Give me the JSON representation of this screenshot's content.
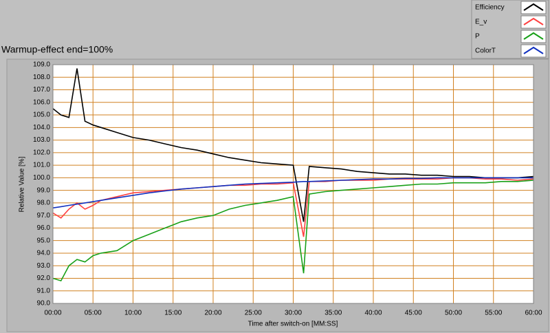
{
  "chart_data": {
    "type": "line",
    "title": "Warmup-effect end=100%",
    "x_label": "Time after switch-on [MM:SS]",
    "y_label": "Relative Value [%]",
    "x": [
      0,
      1,
      2,
      3,
      4,
      5,
      6,
      8,
      10,
      12,
      14,
      16,
      18,
      20,
      22,
      24,
      26,
      28,
      30,
      31.3,
      32,
      34,
      36,
      38,
      40,
      42,
      44,
      46,
      48,
      50,
      52,
      54,
      56,
      58,
      60
    ],
    "series": [
      {
        "name": "Efficiency",
        "color": "#000000",
        "values": [
          105.5,
          105,
          104.8,
          108.7,
          104.5,
          104.2,
          104,
          103.6,
          103.2,
          103,
          102.7,
          102.4,
          102.2,
          101.9,
          101.6,
          101.4,
          101.2,
          101.1,
          101,
          96.5,
          100.9,
          100.8,
          100.7,
          100.5,
          100.4,
          100.3,
          100.3,
          100.2,
          100.2,
          100.1,
          100.1,
          100,
          100,
          100,
          100.1
        ]
      },
      {
        "name": "E_v",
        "color": "#ff4040",
        "values": [
          97.2,
          96.8,
          97.5,
          98,
          97.5,
          97.8,
          98.2,
          98.5,
          98.8,
          98.9,
          99,
          99.1,
          99.2,
          99.3,
          99.4,
          99.4,
          99.5,
          99.5,
          99.6,
          95.3,
          99.7,
          99.7,
          99.8,
          99.8,
          99.8,
          99.9,
          99.9,
          99.9,
          99.9,
          100,
          100,
          99.9,
          99.9,
          99.8,
          99.9
        ]
      },
      {
        "name": "P",
        "color": "#18a018",
        "values": [
          92,
          91.8,
          93,
          93.5,
          93.3,
          93.8,
          94,
          94.2,
          95,
          95.5,
          96,
          96.5,
          96.8,
          97,
          97.5,
          97.8,
          98,
          98.2,
          98.5,
          92.4,
          98.7,
          98.9,
          99,
          99.1,
          99.2,
          99.3,
          99.4,
          99.5,
          99.5,
          99.6,
          99.6,
          99.6,
          99.7,
          99.7,
          99.8
        ]
      },
      {
        "name": "ColorT",
        "color": "#1030c0",
        "values": [
          97.6,
          97.7,
          97.8,
          97.9,
          98,
          98.1,
          98.2,
          98.4,
          98.6,
          98.8,
          98.95,
          99.1,
          99.2,
          99.3,
          99.4,
          99.5,
          99.55,
          99.6,
          99.65,
          99.7,
          99.7,
          99.75,
          99.8,
          99.85,
          99.9,
          99.9,
          99.95,
          99.95,
          100,
          100,
          100,
          100,
          100,
          100,
          100
        ]
      }
    ],
    "xlim": [
      0,
      60
    ],
    "xticks": [
      {
        "value": 0,
        "label": "00:00"
      },
      {
        "value": 5,
        "label": "05:00"
      },
      {
        "value": 10,
        "label": "10:00"
      },
      {
        "value": 15,
        "label": "15:00"
      },
      {
        "value": 20,
        "label": "20:00"
      },
      {
        "value": 25,
        "label": "25:00"
      },
      {
        "value": 30,
        "label": "30:00"
      },
      {
        "value": 35,
        "label": "35:00"
      },
      {
        "value": 40,
        "label": "40:00"
      },
      {
        "value": 45,
        "label": "45:00"
      },
      {
        "value": 50,
        "label": "50:00"
      },
      {
        "value": 55,
        "label": "55:00"
      },
      {
        "value": 60,
        "label": "60:00"
      }
    ],
    "ylim": [
      90,
      109
    ],
    "yticks": [
      {
        "value": 90,
        "label": "90.0"
      },
      {
        "value": 91,
        "label": "91.0"
      },
      {
        "value": 92,
        "label": "92.0"
      },
      {
        "value": 93,
        "label": "93.0"
      },
      {
        "value": 94,
        "label": "94.0"
      },
      {
        "value": 95,
        "label": "95.0"
      },
      {
        "value": 96,
        "label": "96.0"
      },
      {
        "value": 97,
        "label": "97.0"
      },
      {
        "value": 98,
        "label": "98.0"
      },
      {
        "value": 99,
        "label": "99.0"
      },
      {
        "value": 100,
        "label": "100.0"
      },
      {
        "value": 101,
        "label": "101.0"
      },
      {
        "value": 102,
        "label": "102.0"
      },
      {
        "value": 103,
        "label": "103.0"
      },
      {
        "value": 104,
        "label": "104.0"
      },
      {
        "value": 105,
        "label": "105.0"
      },
      {
        "value": 106,
        "label": "106.0"
      },
      {
        "value": 107,
        "label": "107.0"
      },
      {
        "value": 108,
        "label": "108.0"
      },
      {
        "value": 109,
        "label": "109.0"
      }
    ],
    "grid": true,
    "grid_color": "#d08020",
    "legend": "top-right"
  }
}
